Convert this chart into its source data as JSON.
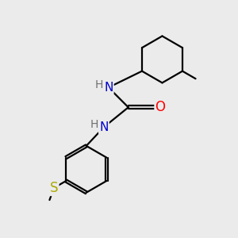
{
  "background_color": "#ebebeb",
  "atom_colors": {
    "N": "#0000cc",
    "O": "#ff0000",
    "S": "#aaaa00",
    "C": "#000000",
    "H": "#707070"
  },
  "line_color": "#000000",
  "line_width": 1.6,
  "figsize": [
    3.0,
    3.0
  ],
  "dpi": 100
}
